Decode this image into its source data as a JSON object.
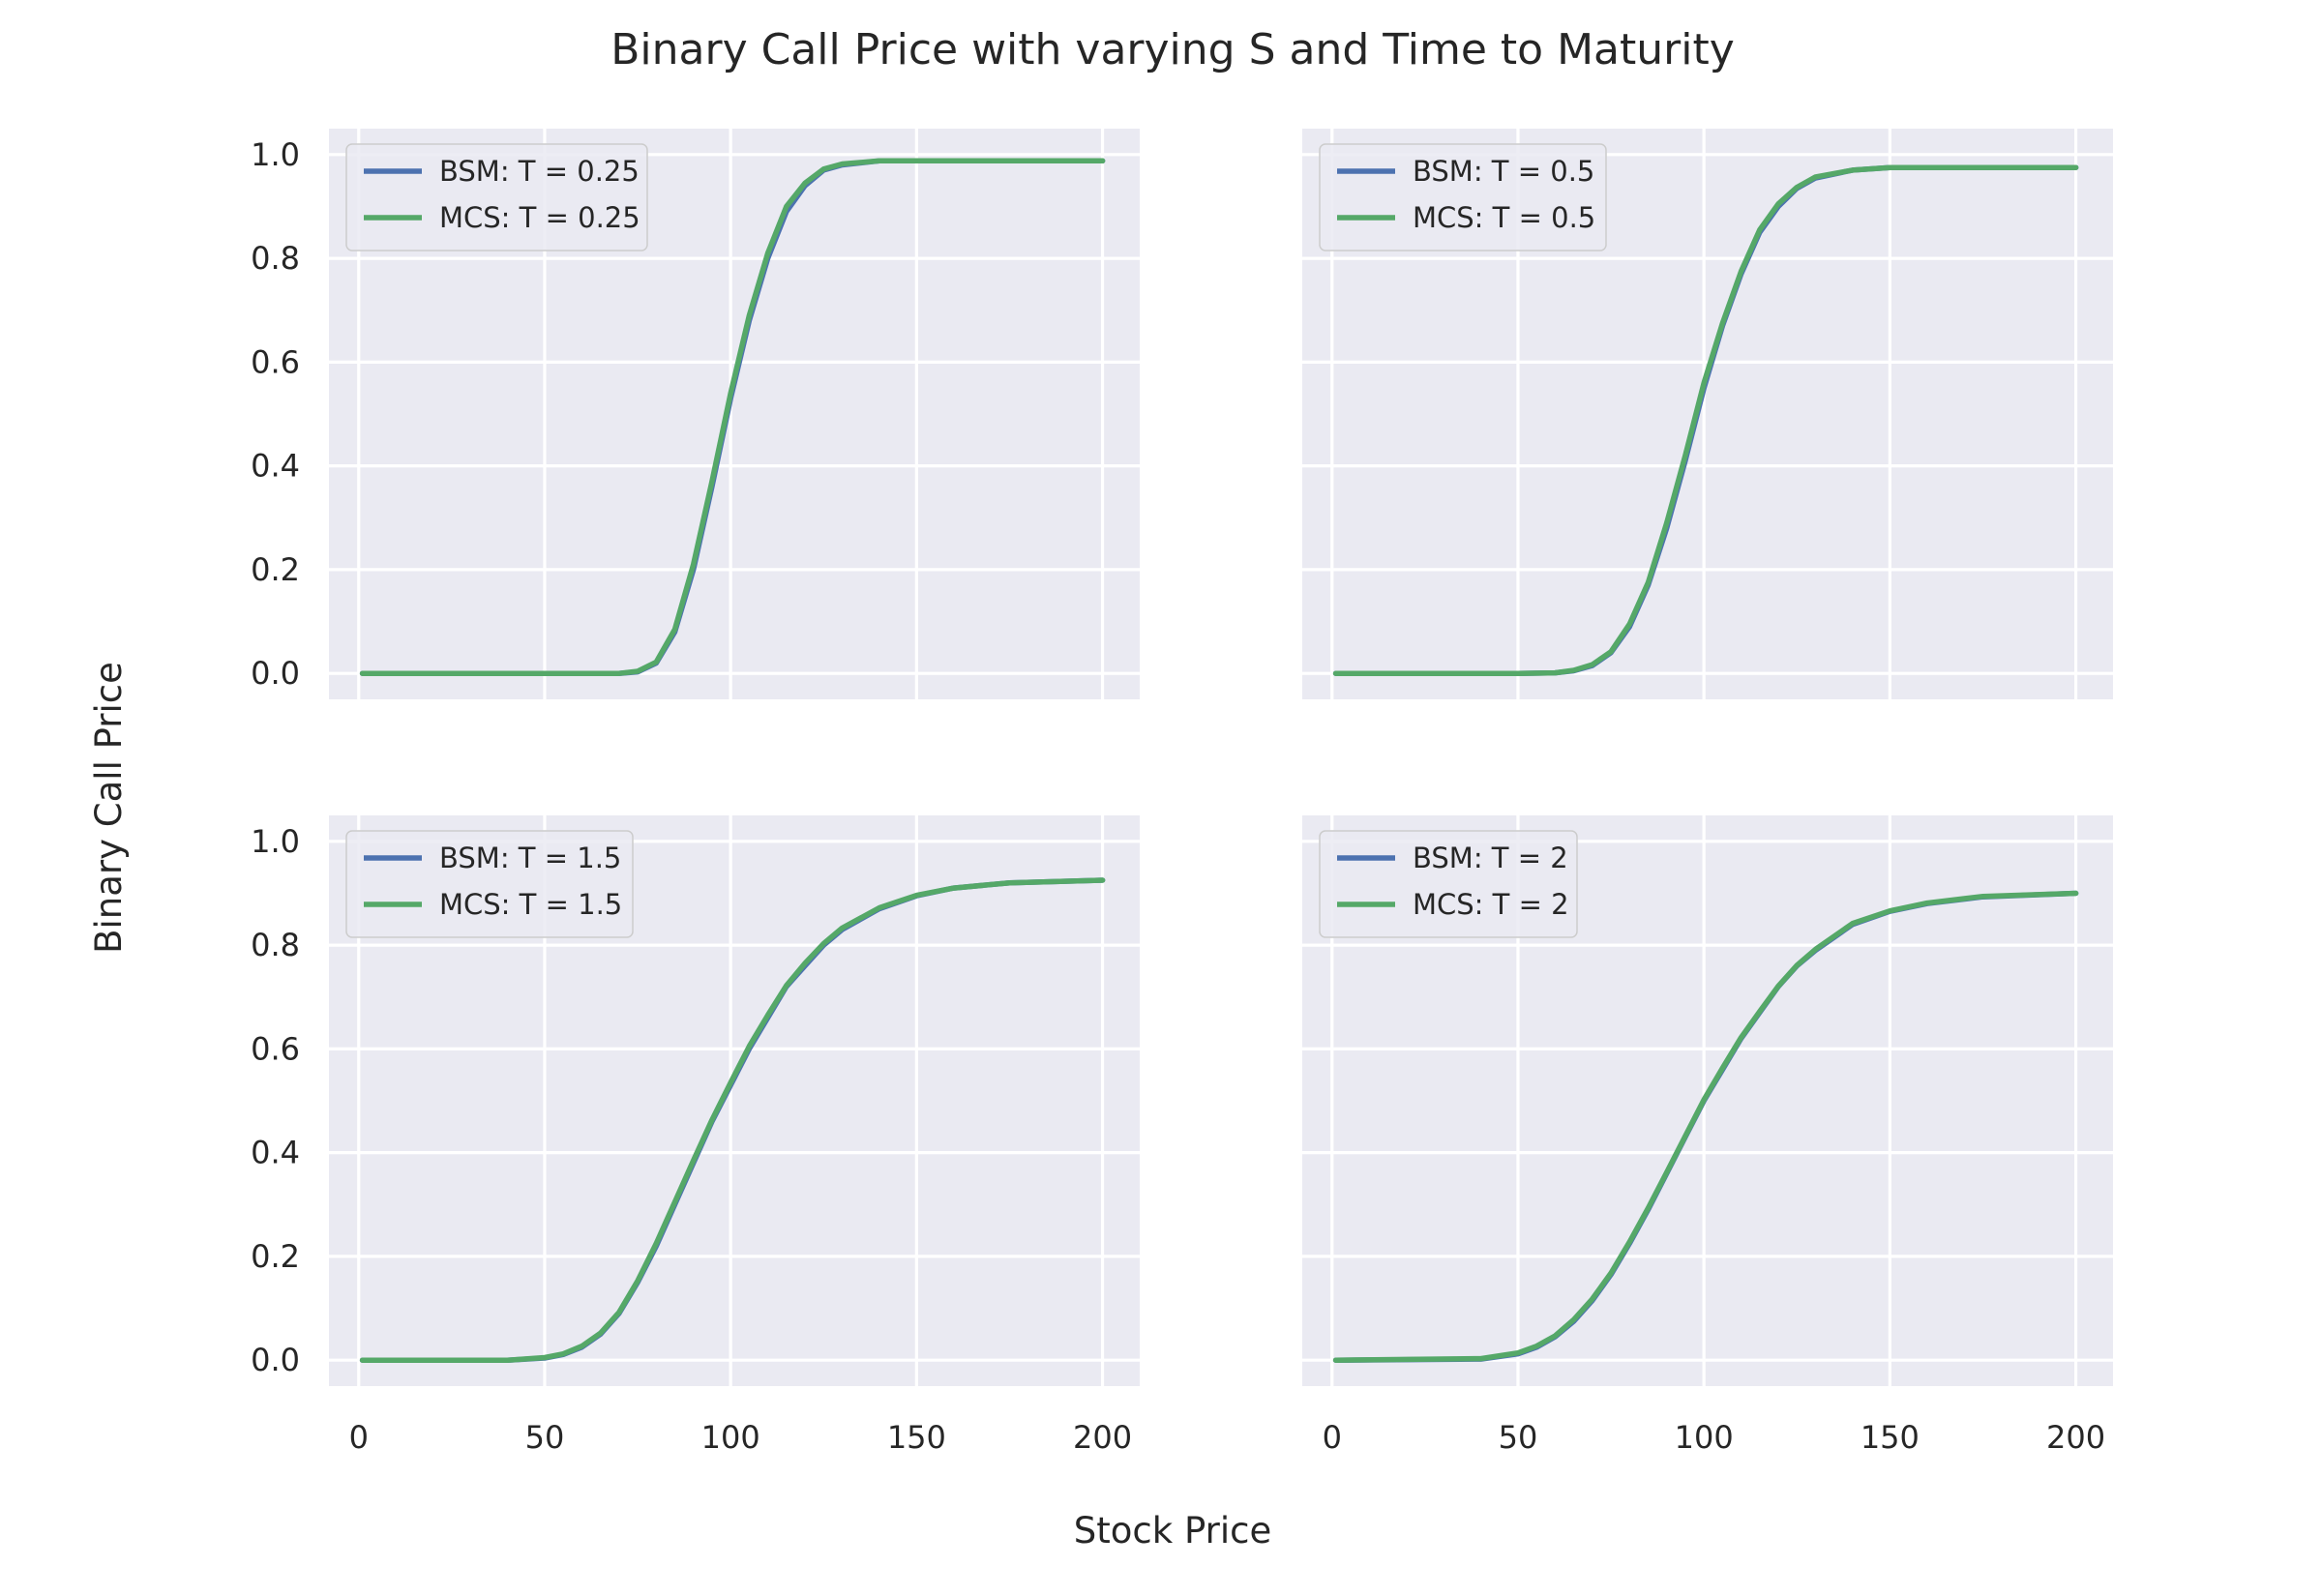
{
  "figure": {
    "title": "Binary Call Price with varying S and Time to Maturity",
    "xlabel": "Stock Price",
    "ylabel": "Binary Call Price",
    "colors": {
      "background": "#ffffff",
      "axes_face": "#eaeaf2",
      "grid": "#ffffff",
      "bsm": "#4c72b0",
      "mcs": "#55a868",
      "text": "#262626"
    }
  },
  "chart_data": [
    {
      "type": "line",
      "panel": "top-left",
      "grid": true,
      "legend_position": "upper-left",
      "xlim": [
        -8,
        210
      ],
      "ylim": [
        -0.05,
        1.05
      ],
      "xticks": [
        0,
        50,
        100,
        150,
        200
      ],
      "xtick_labels": [],
      "yticks": [
        0.0,
        0.2,
        0.4,
        0.6,
        0.8,
        1.0
      ],
      "ytick_labels": [
        "0.0",
        "0.2",
        "0.4",
        "0.6",
        "0.8",
        "1.0"
      ],
      "x": [
        1,
        50,
        70,
        75,
        80,
        85,
        90,
        95,
        100,
        105,
        110,
        115,
        120,
        125,
        130,
        140,
        150,
        175,
        200
      ],
      "series": [
        {
          "name": "BSM: T = 0.25",
          "color": "#4c72b0",
          "values": [
            0.0,
            0.0,
            0.0,
            0.003,
            0.02,
            0.08,
            0.2,
            0.36,
            0.53,
            0.68,
            0.8,
            0.89,
            0.94,
            0.97,
            0.98,
            0.988,
            0.988,
            0.988,
            0.988
          ]
        },
        {
          "name": "MCS: T = 0.25",
          "color": "#55a868",
          "values": [
            0.0,
            0.0,
            0.0,
            0.004,
            0.022,
            0.085,
            0.21,
            0.37,
            0.54,
            0.69,
            0.81,
            0.9,
            0.945,
            0.972,
            0.982,
            0.988,
            0.988,
            0.988,
            0.988
          ]
        }
      ]
    },
    {
      "type": "line",
      "panel": "top-right",
      "grid": true,
      "legend_position": "upper-left",
      "xlim": [
        -8,
        210
      ],
      "ylim": [
        -0.05,
        1.05
      ],
      "xticks": [
        0,
        50,
        100,
        150,
        200
      ],
      "xtick_labels": [],
      "yticks": [
        0.0,
        0.2,
        0.4,
        0.6,
        0.8,
        1.0
      ],
      "ytick_labels": [],
      "x": [
        1,
        50,
        60,
        65,
        70,
        75,
        80,
        85,
        90,
        95,
        100,
        105,
        110,
        115,
        120,
        125,
        130,
        140,
        150,
        175,
        200
      ],
      "series": [
        {
          "name": "BSM: T = 0.5",
          "color": "#4c72b0",
          "values": [
            0.0,
            0.0,
            0.001,
            0.005,
            0.015,
            0.04,
            0.09,
            0.17,
            0.28,
            0.41,
            0.55,
            0.67,
            0.77,
            0.85,
            0.9,
            0.935,
            0.955,
            0.97,
            0.975,
            0.975,
            0.975
          ]
        },
        {
          "name": "MCS: T = 0.5",
          "color": "#55a868",
          "values": [
            0.0,
            0.0,
            0.001,
            0.006,
            0.017,
            0.042,
            0.095,
            0.175,
            0.29,
            0.42,
            0.56,
            0.675,
            0.775,
            0.855,
            0.905,
            0.937,
            0.957,
            0.97,
            0.975,
            0.975,
            0.975
          ]
        }
      ]
    },
    {
      "type": "line",
      "panel": "bottom-left",
      "grid": true,
      "legend_position": "upper-left",
      "xlim": [
        -8,
        210
      ],
      "ylim": [
        -0.05,
        1.05
      ],
      "xticks": [
        0,
        50,
        100,
        150,
        200
      ],
      "xtick_labels": [
        "0",
        "50",
        "100",
        "150",
        "200"
      ],
      "yticks": [
        0.0,
        0.2,
        0.4,
        0.6,
        0.8,
        1.0
      ],
      "ytick_labels": [
        "0.0",
        "0.2",
        "0.4",
        "0.6",
        "0.8",
        "1.0"
      ],
      "x": [
        1,
        40,
        50,
        55,
        60,
        65,
        70,
        75,
        80,
        85,
        90,
        95,
        100,
        105,
        110,
        115,
        120,
        125,
        130,
        140,
        150,
        160,
        175,
        200
      ],
      "series": [
        {
          "name": "BSM: T = 1.5",
          "color": "#4c72b0",
          "values": [
            0.0,
            0.0,
            0.004,
            0.011,
            0.025,
            0.05,
            0.09,
            0.15,
            0.22,
            0.3,
            0.38,
            0.46,
            0.53,
            0.6,
            0.66,
            0.72,
            0.76,
            0.8,
            0.83,
            0.87,
            0.895,
            0.91,
            0.92,
            0.925
          ]
        },
        {
          "name": "MCS: T = 1.5",
          "color": "#55a868",
          "values": [
            0.0,
            0.0,
            0.005,
            0.012,
            0.027,
            0.052,
            0.092,
            0.153,
            0.225,
            0.305,
            0.385,
            0.463,
            0.535,
            0.605,
            0.665,
            0.722,
            0.765,
            0.803,
            0.833,
            0.872,
            0.896,
            0.91,
            0.92,
            0.925
          ]
        }
      ]
    },
    {
      "type": "line",
      "panel": "bottom-right",
      "grid": true,
      "legend_position": "upper-left",
      "xlim": [
        -8,
        210
      ],
      "ylim": [
        -0.05,
        1.05
      ],
      "xticks": [
        0,
        50,
        100,
        150,
        200
      ],
      "xtick_labels": [
        "0",
        "50",
        "100",
        "150",
        "200"
      ],
      "yticks": [
        0.0,
        0.2,
        0.4,
        0.6,
        0.8,
        1.0
      ],
      "ytick_labels": [],
      "x": [
        1,
        40,
        50,
        55,
        60,
        65,
        70,
        75,
        80,
        85,
        90,
        95,
        100,
        105,
        110,
        115,
        120,
        125,
        130,
        140,
        150,
        160,
        175,
        200
      ],
      "series": [
        {
          "name": "BSM: T = 2",
          "color": "#4c72b0",
          "values": [
            0.0,
            0.002,
            0.012,
            0.025,
            0.045,
            0.075,
            0.115,
            0.165,
            0.225,
            0.29,
            0.36,
            0.43,
            0.5,
            0.56,
            0.62,
            0.67,
            0.72,
            0.76,
            0.79,
            0.84,
            0.865,
            0.88,
            0.893,
            0.9
          ]
        },
        {
          "name": "MCS: T = 2",
          "color": "#55a868",
          "values": [
            0.0,
            0.003,
            0.014,
            0.027,
            0.047,
            0.078,
            0.118,
            0.168,
            0.228,
            0.293,
            0.362,
            0.432,
            0.502,
            0.563,
            0.622,
            0.672,
            0.721,
            0.761,
            0.792,
            0.842,
            0.866,
            0.881,
            0.894,
            0.9
          ]
        }
      ]
    }
  ]
}
